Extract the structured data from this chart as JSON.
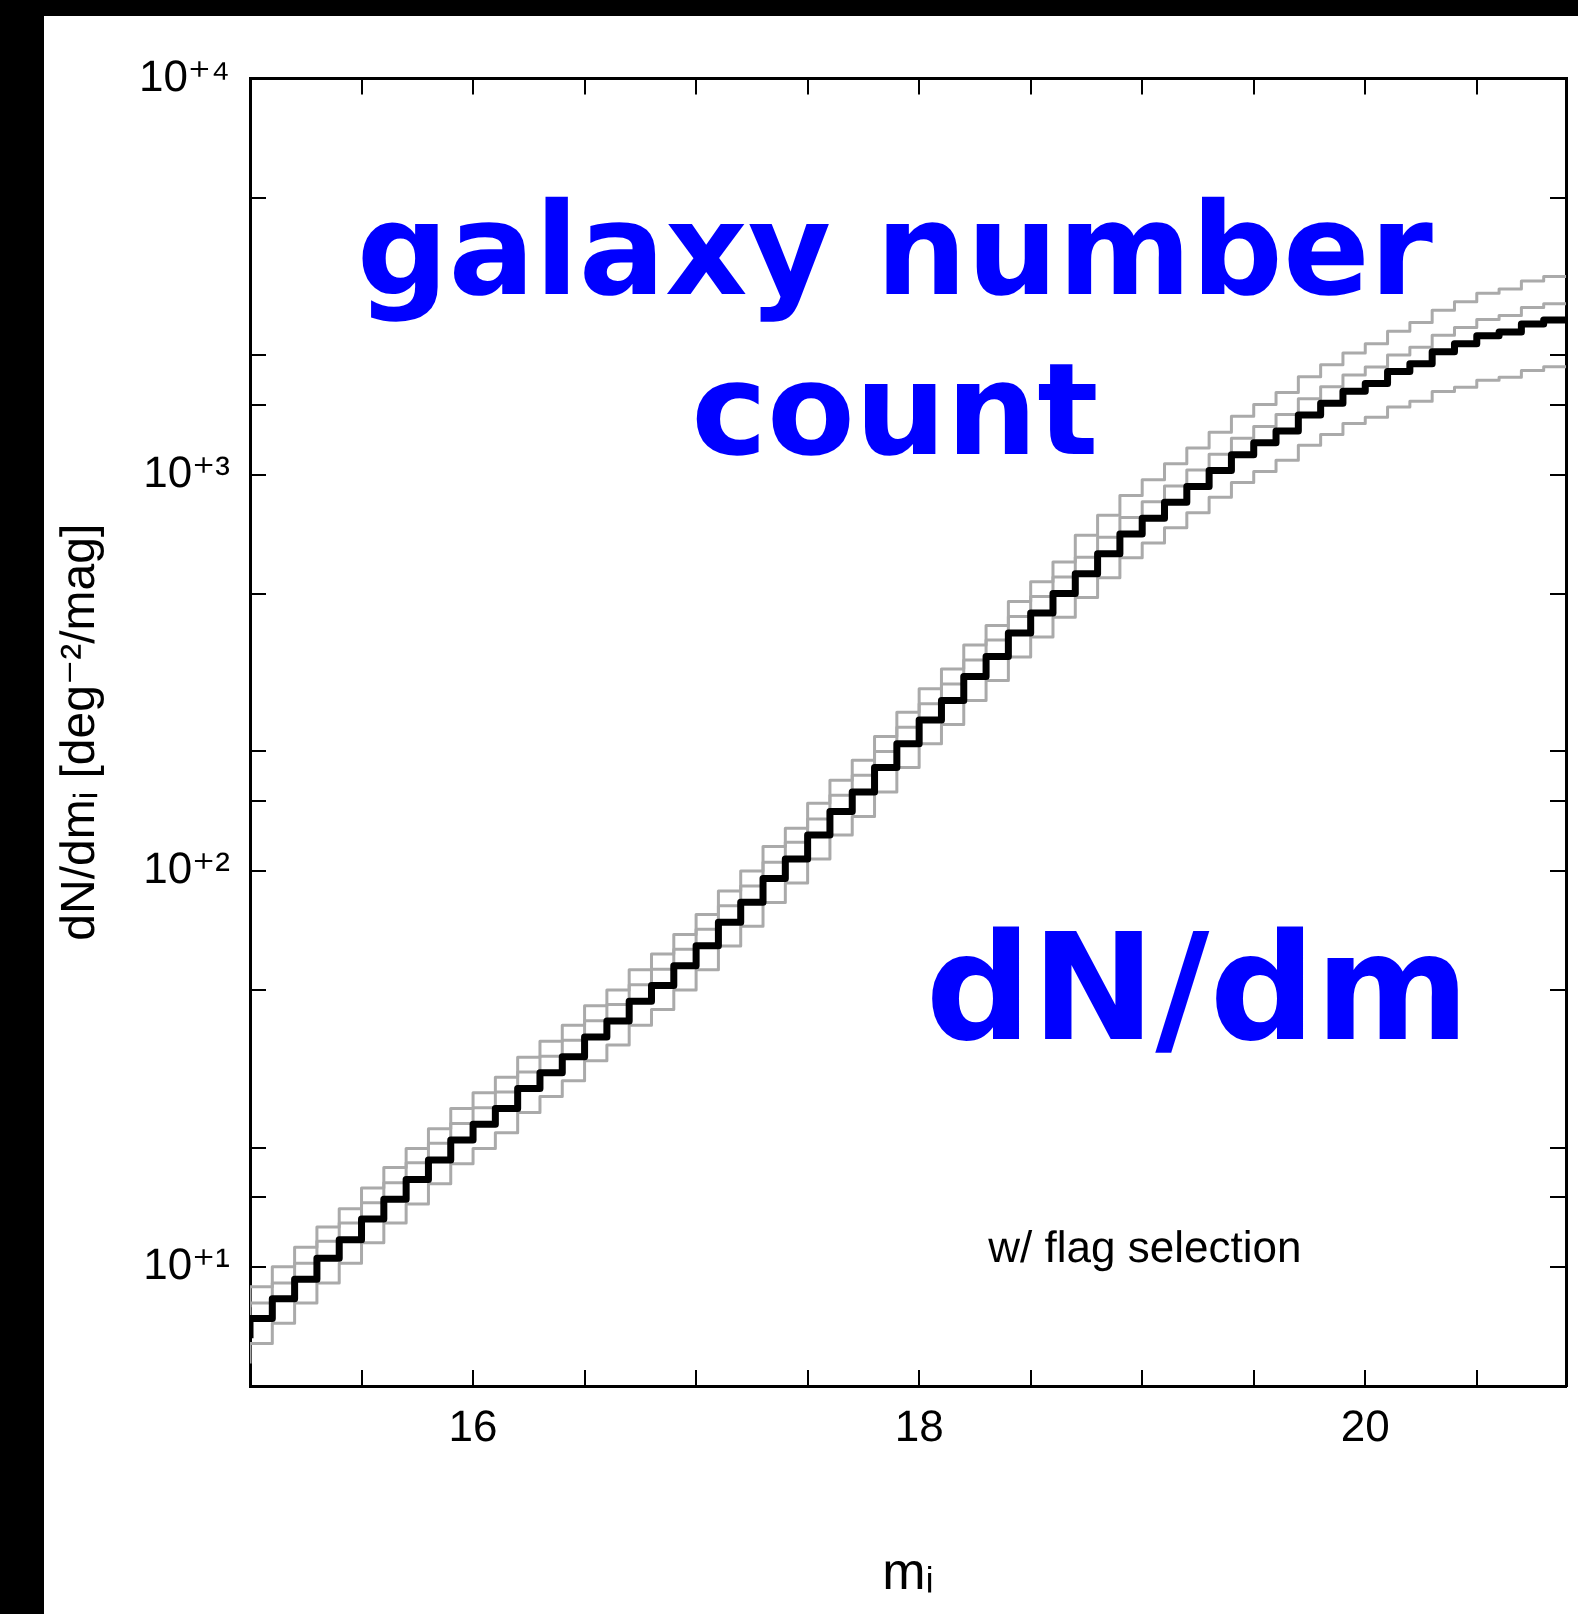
{
  "chart_data": {
    "type": "step",
    "xlabel": "mᵢ",
    "ylabel": "dN/dmᵢ [deg⁻²/mag]",
    "annotations": [
      "galaxy number count",
      "dN/dm",
      "w/ flag selection"
    ],
    "x": [
      15.0,
      15.1,
      15.2,
      15.3,
      15.4,
      15.5,
      15.6,
      15.7,
      15.8,
      15.9,
      16.0,
      16.1,
      16.2,
      16.3,
      16.4,
      16.5,
      16.6,
      16.7,
      16.8,
      16.9,
      17.0,
      17.1,
      17.2,
      17.3,
      17.4,
      17.5,
      17.6,
      17.7,
      17.8,
      17.9,
      18.0,
      18.1,
      18.2,
      18.3,
      18.4,
      18.5,
      18.6,
      18.7,
      18.8,
      18.9,
      19.0,
      19.1,
      19.2,
      19.3,
      19.4,
      19.5,
      19.6,
      19.7,
      19.8,
      19.9,
      20.0,
      20.1,
      20.2,
      20.3,
      20.4,
      20.5,
      20.6,
      20.7,
      20.8,
      20.9
    ],
    "series": [
      {
        "color": "#aaaaaa",
        "values": [
          7.9,
          8.9,
          10,
          11.2,
          12.6,
          14,
          15.8,
          17.8,
          19.9,
          22.3,
          25.1,
          27.5,
          30.1,
          33.8,
          37.1,
          40.7,
          45.6,
          50,
          56.2,
          61.6,
          69,
          77.5,
          88.9,
          99.8,
          115,
          128,
          148,
          169,
          190,
          218,
          251,
          288,
          323,
          371,
          416,
          478,
          536,
          601,
          703,
          789,
          885,
          970,
          1064,
          1166,
          1279,
          1403,
          1503,
          1610,
          1766,
          1893,
          2028,
          2140,
          2300,
          2420,
          2600,
          2730,
          2870,
          2940,
          3080,
          3160
        ]
      },
      {
        "color": "#aaaaaa",
        "values": [
          7.3,
          8.1,
          9.1,
          10.2,
          11.6,
          12.9,
          14.5,
          16.3,
          18.3,
          20.5,
          23,
          25.2,
          27.6,
          31,
          34,
          37.3,
          41.8,
          45.9,
          51.5,
          56.4,
          63.3,
          71.1,
          81.5,
          91.5,
          105,
          118,
          135,
          155,
          174,
          200,
          230,
          264,
          296,
          340,
          382,
          438,
          492,
          551,
          618,
          694,
          779,
          854,
          936,
          1026,
          1125,
          1234,
          1322,
          1417,
          1554,
          1665,
          1784,
          1868,
          2002,
          2096,
          2246,
          2352,
          2463,
          2520,
          2639,
          2700
        ]
      },
      {
        "color": "#aaaaaa",
        "values": [
          5.7,
          6.4,
          7.2,
          8.1,
          9.1,
          10.2,
          11.5,
          12.9,
          14.4,
          16.2,
          18.2,
          19.9,
          21.8,
          24.5,
          26.9,
          29.5,
          33.1,
          36.3,
          40.7,
          44.6,
          50,
          56.2,
          64.5,
          72.4,
          83.1,
          93,
          107,
          123,
          137,
          158,
          182,
          209,
          234,
          269,
          302,
          346,
          389,
          436,
          489,
          549,
          616,
          672,
          734,
          801,
          876,
          955,
          1018,
          1086,
          1186,
          1262,
          1346,
          1396,
          1480,
          1530,
          1620,
          1660,
          1730,
          1760,
          1830,
          1870
        ]
      },
      {
        "color": "#000000",
        "values": [
          6.6,
          7.4,
          8.3,
          9.3,
          10.5,
          11.7,
          13.2,
          14.8,
          16.6,
          18.6,
          20.9,
          22.9,
          25.1,
          28.2,
          30.9,
          33.9,
          38,
          41.7,
          46.8,
          51.3,
          57.5,
          64.6,
          74.1,
          83.2,
          95.5,
          107,
          123,
          141,
          158,
          182,
          209,
          240,
          269,
          309,
          347,
          398,
          447,
          501,
          562,
          631,
          708,
          776,
          851,
          933,
          1023,
          1122,
          1202,
          1288,
          1413,
          1514,
          1622,
          1698,
          1820,
          1905,
          2042,
          2138,
          2239,
          2291,
          2399,
          2455
        ]
      }
    ],
    "xlim": [
      15,
      20.9
    ],
    "xticks": [
      {
        "value": 15.5,
        "label": null
      },
      16,
      {
        "value": 16.5,
        "label": null
      },
      {
        "value": 17,
        "label": null
      },
      {
        "value": 17.5,
        "label": null
      },
      18,
      {
        "value": 18.5,
        "label": null
      },
      {
        "value": 19,
        "label": null
      },
      {
        "value": 19.5,
        "label": null
      },
      20,
      {
        "value": 20.5,
        "label": null
      }
    ],
    "ylim": [
      5,
      10000
    ],
    "log": true,
    "yticks": [
      {
        "value": 10,
        "label": "10⁺¹"
      },
      {
        "value": 15,
        "label": null
      },
      {
        "value": 20,
        "label": null
      },
      {
        "value": 50,
        "label": null
      },
      {
        "value": 100,
        "label": "10⁺²"
      },
      {
        "value": 150,
        "label": null
      },
      {
        "value": 200,
        "label": null
      },
      {
        "value": 500,
        "label": null
      },
      {
        "value": 1000,
        "label": "10⁺³"
      },
      {
        "value": 1500,
        "label": null
      },
      {
        "value": 2000,
        "label": null
      },
      {
        "value": 5000,
        "label": null
      },
      {
        "value": 10000,
        "label": "10⁺⁴"
      }
    ],
    "grid": false,
    "legend": false,
    "marker": "none"
  }
}
